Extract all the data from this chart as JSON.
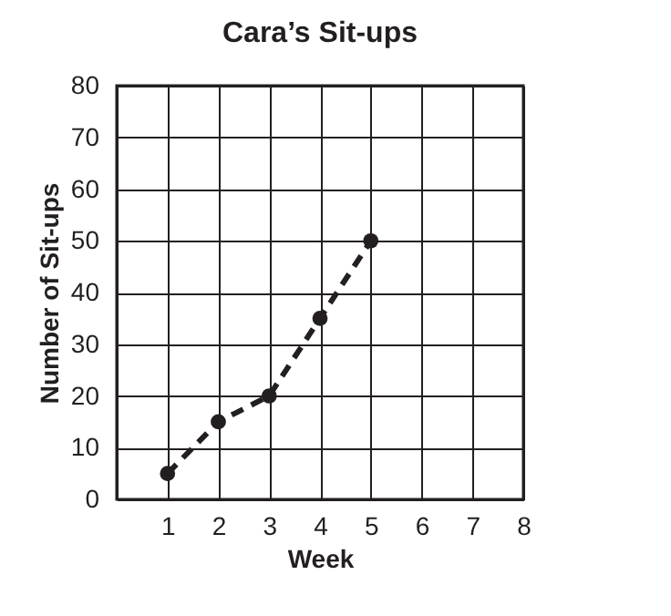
{
  "chart_data": {
    "type": "line",
    "title": "Cara’s Sit-ups",
    "xlabel": "Week",
    "ylabel": "Number of Sit-ups",
    "x": [
      1,
      2,
      3,
      4,
      5
    ],
    "values": [
      5,
      15,
      20,
      35,
      50
    ],
    "color": "#231f20",
    "xlim": [
      0,
      8
    ],
    "xticks": [
      {
        "value": 0,
        "label": null
      },
      1,
      2,
      3,
      4,
      5,
      6,
      7,
      8
    ],
    "ylim": [
      0,
      80
    ],
    "yticks": [
      0,
      10,
      20,
      30,
      40,
      50,
      60,
      70,
      80
    ],
    "grid": true,
    "marker": "circle",
    "line_style": "dashed"
  }
}
